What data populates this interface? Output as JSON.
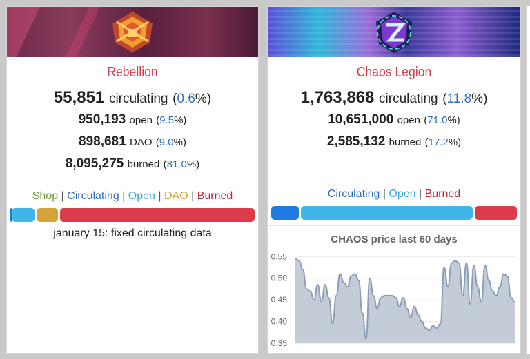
{
  "rebellion": {
    "title": "Rebellion",
    "circulating": {
      "value": "55,851",
      "label": "circulating",
      "open_paren": "(",
      "pct": "0.6",
      "close": "%)"
    },
    "rows": [
      {
        "value": "950,193",
        "label": "open",
        "pct": "9.5"
      },
      {
        "value": "898,681",
        "label": "DAO",
        "pct": "9.0"
      },
      {
        "value": "8,095,275",
        "label": "burned",
        "pct": "81.0"
      }
    ],
    "legend": [
      {
        "label": "Shop",
        "color": "#6a9a3a"
      },
      {
        "label": "Circulating",
        "color": "#2f6fc0"
      },
      {
        "label": "Open",
        "color": "#3aa8d8"
      },
      {
        "label": "DAO",
        "color": "#d4a02a"
      },
      {
        "label": "Burned",
        "color": "#c0283a"
      }
    ],
    "bar_fractions": {
      "shop": 0.0,
      "circulating": 0.006,
      "open": 0.095,
      "dao": 0.09,
      "burned": 0.81
    },
    "note": "january 15: fixed circulating data"
  },
  "chaos": {
    "title": "Chaos Legion",
    "circulating": {
      "value": "1,763,868",
      "label": "circulating",
      "pct": "11.8"
    },
    "rows": [
      {
        "value": "10,651,000",
        "label": "open",
        "pct": "71.0"
      },
      {
        "value": "2,585,132",
        "label": "burned",
        "pct": "17.2"
      }
    ],
    "legend": [
      {
        "label": "Circulating",
        "color": "#2f6fc0"
      },
      {
        "label": "Open",
        "color": "#3aa8d8"
      },
      {
        "label": "Burned",
        "color": "#c0283a"
      }
    ],
    "bar_fractions": {
      "circulating": 0.118,
      "open": 0.71,
      "burned": 0.172
    }
  },
  "colors": {
    "title": "#d93a4a",
    "pct": "#2f6fc0",
    "seg_circulating": "#1e7be0",
    "seg_open": "#40b5e8",
    "seg_dao": "#d4a43a",
    "seg_burned": "#dd3b4b"
  },
  "chart_data": {
    "type": "area",
    "title": "CHAOS price last 60 days",
    "xlabel": "",
    "ylabel": "",
    "ylim": [
      0.35,
      0.56
    ],
    "yticks": [
      "0.55",
      "0.50",
      "0.45",
      "0.40",
      "0.35"
    ],
    "grid": true,
    "series": [
      {
        "values": [
          0.545,
          0.54,
          0.52,
          0.475,
          0.47,
          0.45,
          0.485,
          0.445,
          0.485,
          0.455,
          0.395,
          0.46,
          0.51,
          0.49,
          0.48,
          0.505,
          0.51,
          0.495,
          0.42,
          0.36,
          0.5,
          0.46,
          0.43,
          0.455,
          0.46,
          0.46,
          0.46,
          0.455,
          0.435,
          0.455,
          0.43,
          0.41,
          0.435,
          0.415,
          0.4,
          0.385,
          0.38,
          0.39,
          0.385,
          0.395,
          0.525,
          0.48,
          0.535,
          0.54,
          0.535,
          0.46,
          0.535,
          0.44,
          0.53,
          0.48,
          0.445,
          0.53,
          0.495,
          0.47,
          0.46,
          0.48,
          0.51,
          0.505,
          0.455,
          0.445
        ]
      }
    ]
  }
}
